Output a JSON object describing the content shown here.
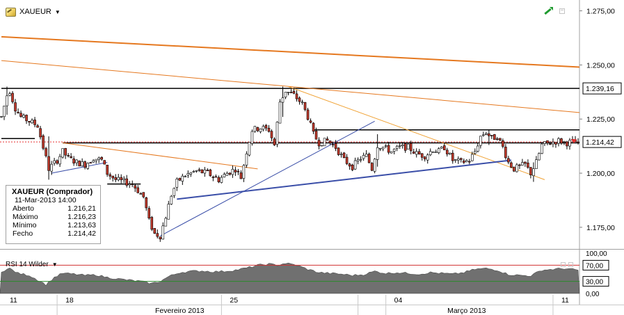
{
  "symbol": {
    "name": "XAUEUR",
    "icon": "chart-pencil-icon",
    "dropdown_icon": "caret-down-icon"
  },
  "toolbar": {
    "trend_icon": "green-trend-arrow-icon",
    "window_icon": "maximize-icon"
  },
  "info_box": {
    "title": "XAUEUR (Comprador)",
    "datetime": "11-Mar-2013 14:00",
    "rows": [
      {
        "label": "Aberto",
        "value": "1.216,21"
      },
      {
        "label": "Máximo",
        "value": "1.216,23"
      },
      {
        "label": "Mínimo",
        "value": "1.213,63"
      },
      {
        "label": "Fecho",
        "value": "1.214,42"
      }
    ]
  },
  "rsi": {
    "label": "RSI 14 Wilder",
    "overbought": "70,00",
    "oversold": "30,00",
    "upper_tick": "100,00",
    "lower_tick": "0,00"
  },
  "colors": {
    "candle_up": "#ffffff",
    "candle_down": "#c0392b",
    "candle_outline": "#000000",
    "trend_blue": "#3a4ea8",
    "trend_orange": "#e5781f",
    "trend_orange_light": "#f0a030",
    "support_black": "#000000",
    "rsi_fill": "#707070",
    "rsi_upper": "#d03030",
    "rsi_lower": "#2a8a2a",
    "current_marker": "#e83030"
  },
  "chart_data": [
    {
      "type": "candlestick",
      "title": "XAUEUR",
      "y_axis": {
        "min": 1165,
        "max": 1280,
        "ticks": [
          "1.275,00",
          "1.250,00",
          "1.225,00",
          "1.200,00",
          "1.175,00"
        ],
        "tick_values": [
          1275,
          1250,
          1225,
          1200,
          1175
        ]
      },
      "level_labels": [
        {
          "label": "1.239,16",
          "value": 1239.16,
          "style": "horizontal-line"
        },
        {
          "label": "1.214,42",
          "value": 1214.42,
          "style": "current-price"
        }
      ],
      "x_axis": {
        "day_labels": [
          "11",
          "18",
          "25",
          "04",
          "11"
        ],
        "month_labels": [
          "Fevereiro 2013",
          "Março 2013"
        ],
        "bar_count": 208,
        "day_label_bars": [
          2,
          22,
          81,
          140,
          200
        ],
        "month_label_bars": [
          64,
          167
        ],
        "separator_bars": [
          20,
          79,
          128,
          138,
          198
        ]
      },
      "anchors": [
        [
          0,
          1226
        ],
        [
          2,
          1236
        ],
        [
          3,
          1238
        ],
        [
          5,
          1230
        ],
        [
          7,
          1226
        ],
        [
          10,
          1224
        ],
        [
          13,
          1222
        ],
        [
          15,
          1212
        ],
        [
          17,
          1202
        ],
        [
          20,
          1206
        ],
        [
          22,
          1210
        ],
        [
          24,
          1207
        ],
        [
          27,
          1205
        ],
        [
          30,
          1204
        ],
        [
          33,
          1207
        ],
        [
          36,
          1206
        ],
        [
          38,
          1200
        ],
        [
          41,
          1197
        ],
        [
          44,
          1196
        ],
        [
          47,
          1195
        ],
        [
          49,
          1192
        ],
        [
          51,
          1189
        ],
        [
          53,
          1178
        ],
        [
          55,
          1172
        ],
        [
          57,
          1171
        ],
        [
          59,
          1180
        ],
        [
          61,
          1190
        ],
        [
          63,
          1196
        ],
        [
          66,
          1199
        ],
        [
          70,
          1201
        ],
        [
          74,
          1200
        ],
        [
          78,
          1197
        ],
        [
          81,
          1200
        ],
        [
          84,
          1202
        ],
        [
          86,
          1198
        ],
        [
          88,
          1210
        ],
        [
          90,
          1220
        ],
        [
          93,
          1221
        ],
        [
          96,
          1220
        ],
        [
          98,
          1213
        ],
        [
          100,
          1233
        ],
        [
          102,
          1238
        ],
        [
          105,
          1236
        ],
        [
          108,
          1232
        ],
        [
          110,
          1226
        ],
        [
          112,
          1218
        ],
        [
          114,
          1214
        ],
        [
          117,
          1215
        ],
        [
          120,
          1212
        ],
        [
          123,
          1206
        ],
        [
          126,
          1203
        ],
        [
          129,
          1207
        ],
        [
          131,
          1208
        ],
        [
          133,
          1202
        ],
        [
          135,
          1213
        ],
        [
          137,
          1212
        ],
        [
          140,
          1210
        ],
        [
          143,
          1212
        ],
        [
          146,
          1212
        ],
        [
          149,
          1209
        ],
        [
          152,
          1208
        ],
        [
          155,
          1211
        ],
        [
          157,
          1210
        ],
        [
          159,
          1212
        ],
        [
          162,
          1206
        ],
        [
          165,
          1205
        ],
        [
          168,
          1206
        ],
        [
          170,
          1210
        ],
        [
          172,
          1217
        ],
        [
          174,
          1219
        ],
        [
          176,
          1216
        ],
        [
          178,
          1217
        ],
        [
          180,
          1212
        ],
        [
          182,
          1205
        ],
        [
          184,
          1202
        ],
        [
          186,
          1203
        ],
        [
          188,
          1204
        ],
        [
          190,
          1200
        ],
        [
          192,
          1205
        ],
        [
          194,
          1213
        ],
        [
          197,
          1214
        ],
        [
          200,
          1215
        ],
        [
          203,
          1214
        ],
        [
          205,
          1214.5
        ],
        [
          207,
          1214.42
        ]
      ],
      "highlights": [
        {
          "bar": 2,
          "high": 1240,
          "low": 1227
        },
        {
          "bar": 17,
          "high": 1217,
          "low": 1197
        },
        {
          "bar": 56,
          "high": 1174,
          "low": 1170
        },
        {
          "bar": 101,
          "high": 1240,
          "low": 1226
        },
        {
          "bar": 135,
          "high": 1218,
          "low": 1203
        },
        {
          "bar": 175,
          "high": 1220,
          "low": 1213
        },
        {
          "bar": 191,
          "high": 1205,
          "low": 1196
        }
      ],
      "lines": [
        {
          "name": "resistance-top",
          "color": "support_black",
          "width": 1.5,
          "from": [
            0,
            1239.16
          ],
          "to": [
            208,
            1239.16
          ]
        },
        {
          "name": "resistance-mid",
          "color": "support_black",
          "width": 1.5,
          "from": [
            112,
            1220
          ],
          "to": [
            208,
            1220
          ]
        },
        {
          "name": "support-main",
          "color": "support_black",
          "width": 1.5,
          "from": [
            22,
            1214
          ],
          "to": [
            208,
            1214
          ]
        },
        {
          "name": "support-left",
          "color": "support_black",
          "width": 1.5,
          "from": [
            0,
            1216
          ],
          "to": [
            12,
            1216
          ]
        },
        {
          "name": "support-low",
          "color": "support_black",
          "width": 1.5,
          "from": [
            38,
            1195
          ],
          "to": [
            50,
            1195
          ]
        },
        {
          "name": "channel-orange-top",
          "color": "trend_orange",
          "width": 2,
          "from": [
            0,
            1263
          ],
          "to": [
            208,
            1249
          ]
        },
        {
          "name": "channel-orange-thin",
          "color": "trend_orange",
          "width": 1,
          "from": [
            0,
            1252
          ],
          "to": [
            208,
            1228
          ]
        },
        {
          "name": "orange-downtrend",
          "color": "trend_orange_light",
          "width": 1,
          "from": [
            103,
            1240
          ],
          "to": [
            195,
            1197
          ]
        },
        {
          "name": "orange-left",
          "color": "trend_orange",
          "width": 1,
          "from": [
            22,
            1214
          ],
          "to": [
            92,
            1202
          ]
        },
        {
          "name": "blue-uptrend",
          "color": "trend_blue",
          "width": 2,
          "from": [
            63,
            1188
          ],
          "to": [
            183,
            1206
          ]
        },
        {
          "name": "blue-thin-up",
          "color": "trend_blue",
          "width": 1,
          "from": [
            57,
            1171
          ],
          "to": [
            134,
            1224
          ]
        },
        {
          "name": "blue-left",
          "color": "trend_blue",
          "width": 1,
          "from": [
            18,
            1200
          ],
          "to": [
            38,
            1205
          ]
        }
      ]
    },
    {
      "type": "area",
      "title": "RSI 14 Wilder",
      "y_axis": {
        "min": 0,
        "max": 100,
        "ticks": [
          "100,00",
          "70,00",
          "30,00",
          "0,00"
        ],
        "tick_values": [
          100,
          70,
          30,
          0
        ]
      },
      "levels": [
        70,
        30
      ],
      "anchors": [
        [
          0,
          55
        ],
        [
          3,
          62
        ],
        [
          6,
          50
        ],
        [
          10,
          45
        ],
        [
          14,
          30
        ],
        [
          16,
          22
        ],
        [
          19,
          40
        ],
        [
          22,
          50
        ],
        [
          26,
          48
        ],
        [
          30,
          45
        ],
        [
          34,
          46
        ],
        [
          38,
          40
        ],
        [
          42,
          36
        ],
        [
          46,
          33
        ],
        [
          50,
          30
        ],
        [
          54,
          25
        ],
        [
          57,
          30
        ],
        [
          60,
          42
        ],
        [
          64,
          52
        ],
        [
          68,
          55
        ],
        [
          72,
          56
        ],
        [
          76,
          54
        ],
        [
          80,
          55
        ],
        [
          84,
          58
        ],
        [
          88,
          63
        ],
        [
          92,
          70
        ],
        [
          96,
          73
        ],
        [
          99,
          70
        ],
        [
          102,
          75
        ],
        [
          106,
          70
        ],
        [
          110,
          60
        ],
        [
          114,
          52
        ],
        [
          118,
          50
        ],
        [
          122,
          48
        ],
        [
          126,
          45
        ],
        [
          130,
          47
        ],
        [
          134,
          55
        ],
        [
          138,
          50
        ],
        [
          142,
          52
        ],
        [
          146,
          50
        ],
        [
          150,
          48
        ],
        [
          154,
          52
        ],
        [
          158,
          50
        ],
        [
          162,
          48
        ],
        [
          166,
          52
        ],
        [
          170,
          60
        ],
        [
          174,
          62
        ],
        [
          178,
          58
        ],
        [
          182,
          47
        ],
        [
          186,
          45
        ],
        [
          190,
          44
        ],
        [
          194,
          58
        ],
        [
          198,
          60
        ],
        [
          202,
          62
        ],
        [
          207,
          58
        ]
      ]
    }
  ]
}
